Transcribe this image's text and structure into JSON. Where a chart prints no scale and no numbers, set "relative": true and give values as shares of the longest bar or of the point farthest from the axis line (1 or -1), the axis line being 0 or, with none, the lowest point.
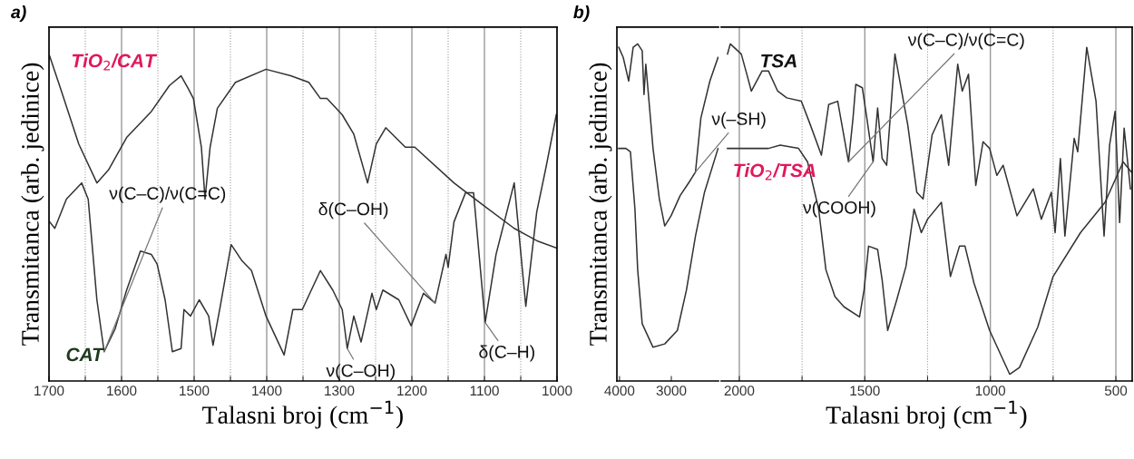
{
  "chart_data": [
    {
      "type": "line",
      "title": "a)",
      "xlabel": "Talasni broj (cm$^{−1}$)",
      "ylabel": "Transmitanca (arb. jedinice)",
      "relative": true,
      "tick_labels": "x",
      "grid": "x",
      "xlim": [
        1700,
        1000
      ],
      "xticks": [
        1700,
        {
          "value": 1650,
          "label": null
        },
        1600,
        {
          "value": 1550,
          "label": null
        },
        1500,
        {
          "value": 1450,
          "label": null
        },
        1400,
        {
          "value": 1350,
          "label": null
        },
        1300,
        {
          "value": 1250,
          "label": null
        },
        1200,
        {
          "value": 1150,
          "label": null
        },
        1100,
        {
          "value": 1050,
          "label": null
        },
        1000
      ],
      "series": [
        {
          "name": "TiO$_{2}$/CAT",
          "color": "#333333",
          "x": [
            1699,
            1684,
            1659,
            1634,
            1618,
            1593,
            1559,
            1534,
            1518,
            1508,
            1501,
            1490,
            1485,
            1478,
            1468,
            1443,
            1401,
            1367,
            1342,
            1326,
            1317,
            1296,
            1280,
            1261,
            1249,
            1236,
            1209,
            1196,
            1142,
            1101,
            1059,
            1026,
            1001
          ],
          "values": [
            1.0,
            0.9,
            0.73,
            0.61,
            0.65,
            0.75,
            0.83,
            0.91,
            0.94,
            0.9,
            0.87,
            0.72,
            0.56,
            0.72,
            0.84,
            0.92,
            0.96,
            0.94,
            0.92,
            0.87,
            0.87,
            0.82,
            0.76,
            0.61,
            0.73,
            0.78,
            0.72,
            0.72,
            0.61,
            0.54,
            0.47,
            0.43,
            0.41
          ]
        },
        {
          "name": "CAT",
          "color": "#333333",
          "x": [
            1699,
            1692,
            1676,
            1655,
            1646,
            1634,
            1624,
            1609,
            1593,
            1574,
            1559,
            1551,
            1540,
            1530,
            1518,
            1514,
            1505,
            1493,
            1480,
            1474,
            1464,
            1449,
            1434,
            1421,
            1401,
            1376,
            1364,
            1351,
            1326,
            1309,
            1296,
            1289,
            1280,
            1270,
            1255,
            1249,
            1240,
            1218,
            1201,
            1184,
            1168,
            1153,
            1150,
            1142,
            1126,
            1115,
            1099,
            1084,
            1059,
            1043,
            1028,
            1015,
            1001
          ],
          "values": [
            0.49,
            0.47,
            0.56,
            0.61,
            0.56,
            0.25,
            0.09,
            0.16,
            0.28,
            0.4,
            0.39,
            0.36,
            0.25,
            0.09,
            0.1,
            0.22,
            0.2,
            0.25,
            0.2,
            0.11,
            0.23,
            0.42,
            0.37,
            0.34,
            0.2,
            0.08,
            0.22,
            0.22,
            0.34,
            0.28,
            0.22,
            0.1,
            0.2,
            0.12,
            0.27,
            0.22,
            0.28,
            0.25,
            0.17,
            0.27,
            0.24,
            0.39,
            0.35,
            0.49,
            0.58,
            0.58,
            0.18,
            0.39,
            0.61,
            0.23,
            0.52,
            0.66,
            0.82
          ]
        }
      ],
      "annotations": [
        {
          "text": "ν(C–C)/ν(C=C)",
          "x": 1624,
          "y": 0.09
        },
        {
          "text": "δ(C–OH)",
          "x": 1168,
          "y": 0.24
        },
        {
          "text": "ν(C–OH)",
          "x": 1289,
          "y": 0.1
        },
        {
          "text": "δ(C–H)",
          "x": 1099,
          "y": 0.18
        }
      ]
    },
    {
      "type": "line",
      "title": "b)",
      "ylabel": "Transmitanca (arb. jedinice)",
      "relative": true,
      "tick_labels": "x",
      "xlim": [
        4050,
        2090
      ],
      "xticks": [
        4000,
        3000
      ],
      "series": [
        {
          "color": "#333333",
          "x": [
            4015,
            3928,
            3823,
            3736,
            3649,
            3562,
            3527,
            3492,
            3353,
            3231,
            3127,
            3005,
            2830,
            2656,
            2534,
            2430,
            2256,
            2099
          ],
          "values": [
            0.99,
            0.96,
            0.89,
            0.99,
            1.0,
            0.98,
            0.85,
            0.94,
            0.69,
            0.54,
            0.46,
            0.49,
            0.55,
            0.59,
            0.62,
            0.78,
            0.89,
            0.96
          ]
        },
        {
          "color": "#333333",
          "x": [
            4015,
            3876,
            3789,
            3702,
            3649,
            3562,
            3353,
            3127,
            2883,
            2708,
            2534,
            2360,
            2099
          ],
          "values": [
            0.69,
            0.69,
            0.68,
            0.51,
            0.33,
            0.17,
            0.1,
            0.11,
            0.15,
            0.27,
            0.43,
            0.56,
            0.69
          ]
        }
      ],
      "annotations": [
        {
          "text": "ν(–SH)",
          "x": 2534,
          "y": 0.62
        }
      ]
    },
    {
      "type": "line",
      "xlabel": "Talasni broj (cm$^{−1}$)",
      "relative": true,
      "tick_labels": "x",
      "grid": "x",
      "xlim": [
        2072,
        435
      ],
      "xticks": [
        2000,
        {
          "value": 1750,
          "label": null
        },
        1500,
        {
          "value": 1250,
          "label": null
        },
        1000,
        {
          "value": 750,
          "label": null
        },
        500
      ],
      "series": [
        {
          "name": "TSA",
          "color": "#333333",
          "x": [
            2047,
            2036,
            1992,
            1970,
            1952,
            1909,
            1884,
            1847,
            1811,
            1753,
            1717,
            1673,
            1644,
            1608,
            1565,
            1547,
            1536,
            1510,
            1492,
            1467,
            1449,
            1431,
            1413,
            1380,
            1329,
            1293,
            1268,
            1232,
            1195,
            1166,
            1130,
            1112,
            1087,
            1058,
            1029,
            1003,
            974,
            949,
            894,
            829,
            797,
            757,
            742,
            721,
            703,
            666,
            652,
            616,
            579,
            547,
            525,
            503,
            485,
            467,
            442
          ],
          "values": [
            0.97,
            1.0,
            0.97,
            0.91,
            0.86,
            0.92,
            0.92,
            0.86,
            0.84,
            0.83,
            0.76,
            0.67,
            0.82,
            0.83,
            0.65,
            0.78,
            0.88,
            0.87,
            0.78,
            0.65,
            0.81,
            0.66,
            0.64,
            0.97,
            0.76,
            0.56,
            0.54,
            0.73,
            0.79,
            0.64,
            0.94,
            0.86,
            0.91,
            0.58,
            0.71,
            0.69,
            0.61,
            0.64,
            0.49,
            0.57,
            0.48,
            0.56,
            0.44,
            0.66,
            0.43,
            0.72,
            0.68,
            0.99,
            0.83,
            0.43,
            0.7,
            0.8,
            0.47,
            0.75,
            0.57
          ]
        },
        {
          "name": "TiO$_{2}$/TSA",
          "color": "#333333",
          "x": [
            2047,
            1982,
            1884,
            1837,
            1764,
            1728,
            1684,
            1655,
            1619,
            1583,
            1521,
            1503,
            1485,
            1449,
            1431,
            1409,
            1373,
            1336,
            1304,
            1275,
            1250,
            1195,
            1159,
            1123,
            1101,
            1065,
            1003,
            923,
            884,
            811,
            750,
            641,
            543,
            471,
            438
          ],
          "values": [
            0.69,
            0.69,
            0.69,
            0.7,
            0.69,
            0.65,
            0.51,
            0.33,
            0.25,
            0.22,
            0.19,
            0.27,
            0.4,
            0.39,
            0.3,
            0.15,
            0.24,
            0.34,
            0.51,
            0.44,
            0.48,
            0.53,
            0.31,
            0.4,
            0.4,
            0.29,
            0.15,
            0.02,
            0.04,
            0.16,
            0.31,
            0.44,
            0.53,
            0.65,
            0.62
          ]
        }
      ],
      "annotations": [
        {
          "text": "ν(COOH)",
          "x": 1467,
          "y": 0.65
        },
        {
          "text": "ν(C–C)/ν(C=C)",
          "x": 1565,
          "y": 0.65
        }
      ]
    }
  ]
}
